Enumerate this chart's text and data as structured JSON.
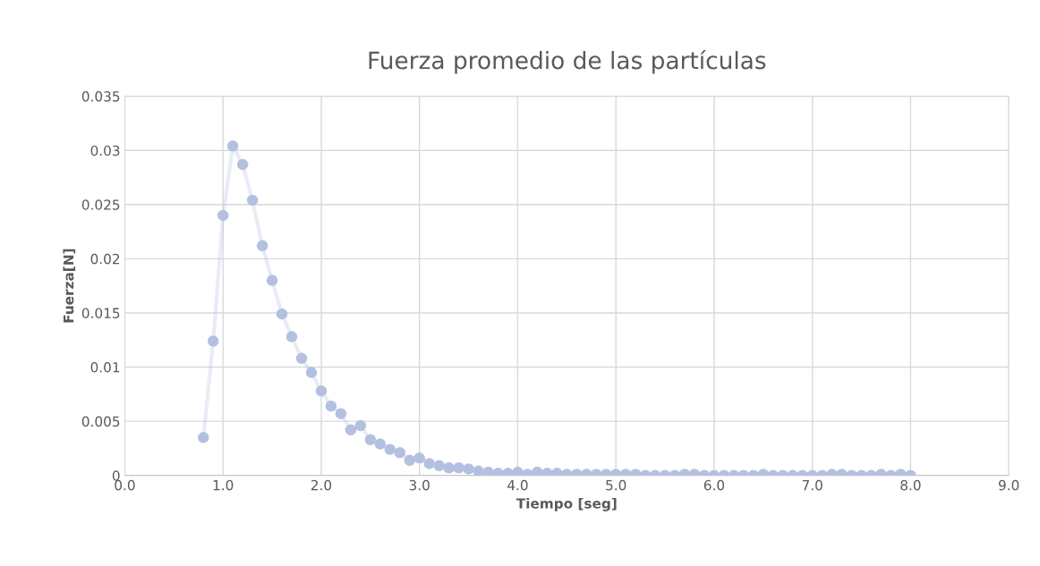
{
  "chart_data": {
    "type": "line",
    "title": "Fuerza promedio de las partículas",
    "xlabel": "Tiempo [seg]",
    "ylabel": "Fuerza[N]",
    "x": [
      0.8,
      0.9,
      1.0,
      1.1,
      1.2,
      1.3,
      1.4,
      1.5,
      1.6,
      1.7,
      1.8,
      1.9,
      2.0,
      2.1,
      2.2,
      2.3,
      2.4,
      2.5,
      2.6,
      2.7,
      2.8,
      2.9,
      3.0,
      3.1,
      3.2,
      3.3,
      3.4,
      3.5,
      3.6,
      3.7,
      3.8,
      3.9,
      4.0,
      4.1,
      4.2,
      4.3,
      4.4,
      4.5,
      4.6,
      4.7,
      4.8,
      4.9,
      5.0,
      5.1,
      5.2,
      5.3,
      5.4,
      5.5,
      5.6,
      5.7,
      5.8,
      5.9,
      6.0,
      6.1,
      6.2,
      6.3,
      6.4,
      6.5,
      6.6,
      6.7,
      6.8,
      6.9,
      7.0,
      7.1,
      7.2,
      7.3,
      7.4,
      7.5,
      7.6,
      7.7,
      7.8,
      7.9,
      8.0
    ],
    "series": [
      {
        "color": "#b4c0e0",
        "values": [
          0.0035,
          0.0124,
          0.024,
          0.0304,
          0.0287,
          0.0254,
          0.0212,
          0.018,
          0.0149,
          0.0128,
          0.0108,
          0.0095,
          0.0078,
          0.0064,
          0.0057,
          0.0042,
          0.0046,
          0.0033,
          0.0029,
          0.0024,
          0.0021,
          0.0014,
          0.0016,
          0.0011,
          0.0009,
          0.0007,
          0.0007,
          0.0006,
          0.0004,
          0.0003,
          0.0002,
          0.0002,
          0.0003,
          0.0001,
          0.0003,
          0.0002,
          0.0002,
          0.0001,
          0.0001,
          0.0001,
          0.0001,
          0.0001,
          0.0001,
          0.0001,
          0.0001,
          0.0,
          0.0,
          0.0,
          0.0,
          0.0001,
          0.0001,
          0.0,
          0.0,
          0.0,
          0.0,
          0.0,
          0.0,
          0.0001,
          0.0,
          0.0,
          0.0,
          0.0,
          0.0,
          0.0,
          0.0001,
          0.0001,
          0.0,
          0.0,
          0.0,
          0.0001,
          0.0,
          0.0001,
          0.0
        ]
      }
    ],
    "marker": "circle",
    "line_style": "solid",
    "grid": true,
    "legend": false,
    "xlim": [
      0,
      9
    ],
    "xticks": [
      {
        "value": 0,
        "label": "0.0"
      },
      {
        "value": 1,
        "label": "1.0"
      },
      {
        "value": 2,
        "label": "2.0"
      },
      {
        "value": 3,
        "label": "3.0"
      },
      {
        "value": 4,
        "label": "4.0"
      },
      {
        "value": 5,
        "label": "5.0"
      },
      {
        "value": 6,
        "label": "6.0"
      },
      {
        "value": 7,
        "label": "7.0"
      },
      {
        "value": 8,
        "label": "8.0"
      },
      {
        "value": 9,
        "label": "9.0"
      }
    ],
    "ylim": [
      0,
      0.035
    ],
    "yticks": [
      0,
      0.005,
      0.01,
      0.015,
      0.02,
      0.025,
      0.03,
      0.035
    ]
  }
}
